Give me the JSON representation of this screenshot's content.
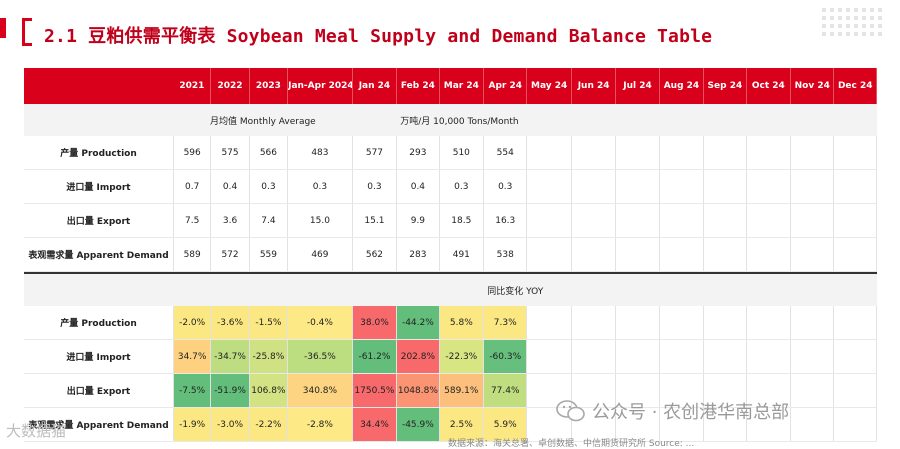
{
  "page": {
    "title": "2.1 豆粕供需平衡表 Soybean Meal Supply and Demand Balance Table"
  },
  "table": {
    "columns": [
      "",
      "2021",
      "2022",
      "2023",
      "Jan-Apr 2024",
      "Jan 24",
      "Feb 24",
      "Mar 24",
      "Apr 24",
      "May 24",
      "Jun 24",
      "Jul 24",
      "Aug 24",
      "Sep 24",
      "Oct 24",
      "Nov 24",
      "Dec 24"
    ],
    "section1": {
      "left": "月均值 Monthly Average",
      "right": "万吨/月  10,000 Tons/Month"
    },
    "rows1": [
      {
        "label": "产量 Production",
        "values": [
          "596",
          "575",
          "566",
          "483",
          "577",
          "293",
          "510",
          "554"
        ]
      },
      {
        "label": "进口量 Import",
        "values": [
          "0.7",
          "0.4",
          "0.3",
          "0.3",
          "0.3",
          "0.4",
          "0.3",
          "0.3"
        ]
      },
      {
        "label": "出口量 Export",
        "values": [
          "7.5",
          "3.6",
          "7.4",
          "15.0",
          "15.1",
          "9.9",
          "18.5",
          "16.3"
        ]
      },
      {
        "label": "表观需求量 Apparent Demand",
        "values": [
          "589",
          "572",
          "559",
          "469",
          "562",
          "283",
          "491",
          "538"
        ]
      }
    ],
    "section2": {
      "title": "同比变化 YOY"
    },
    "rows2": [
      {
        "label": "产量 Production",
        "values": [
          "-2.0%",
          "-3.6%",
          "-1.5%",
          "-0.4%",
          "38.0%",
          "-44.2%",
          "5.8%",
          "7.3%"
        ],
        "colors": [
          "#fce882",
          "#fce882",
          "#fce882",
          "#fde985",
          "#f8696b",
          "#63be7b",
          "#fce882",
          "#fce882"
        ]
      },
      {
        "label": "进口量 Import",
        "values": [
          "34.7%",
          "-34.7%",
          "-25.8%",
          "-36.5%",
          "-61.2%",
          "202.8%",
          "-22.3%",
          "-60.3%"
        ],
        "colors": [
          "#fdd17f",
          "#bddd80",
          "#cfe283",
          "#bcdd80",
          "#63be7b",
          "#f8696b",
          "#d8e583",
          "#66bf7c"
        ]
      },
      {
        "label": "出口量 Export",
        "values": [
          "-7.5%",
          "-51.9%",
          "106.8%",
          "340.8%",
          "1750.5%",
          "1048.8%",
          "589.1%",
          "77.4%"
        ],
        "colors": [
          "#63be7b",
          "#63be7b",
          "#d3e383",
          "#fdd481",
          "#f8696b",
          "#fa9473",
          "#fcc07c",
          "#c0de80"
        ]
      },
      {
        "label": "表观需求量 Apparent Demand",
        "values": [
          "-1.9%",
          "-3.0%",
          "-2.2%",
          "-2.8%",
          "34.4%",
          "-45.9%",
          "2.5%",
          "5.9%"
        ],
        "colors": [
          "#fce882",
          "#fce882",
          "#fce882",
          "#fde985",
          "#f8696b",
          "#63be7b",
          "#fce882",
          "#fce882"
        ]
      }
    ]
  },
  "footer": {
    "wechat": "公众号 · 农创港华南总部",
    "watermark_left": "大数据猫",
    "source": "数据来源：海关总署、卓创数据、中信期货研究所 Source: ..."
  }
}
